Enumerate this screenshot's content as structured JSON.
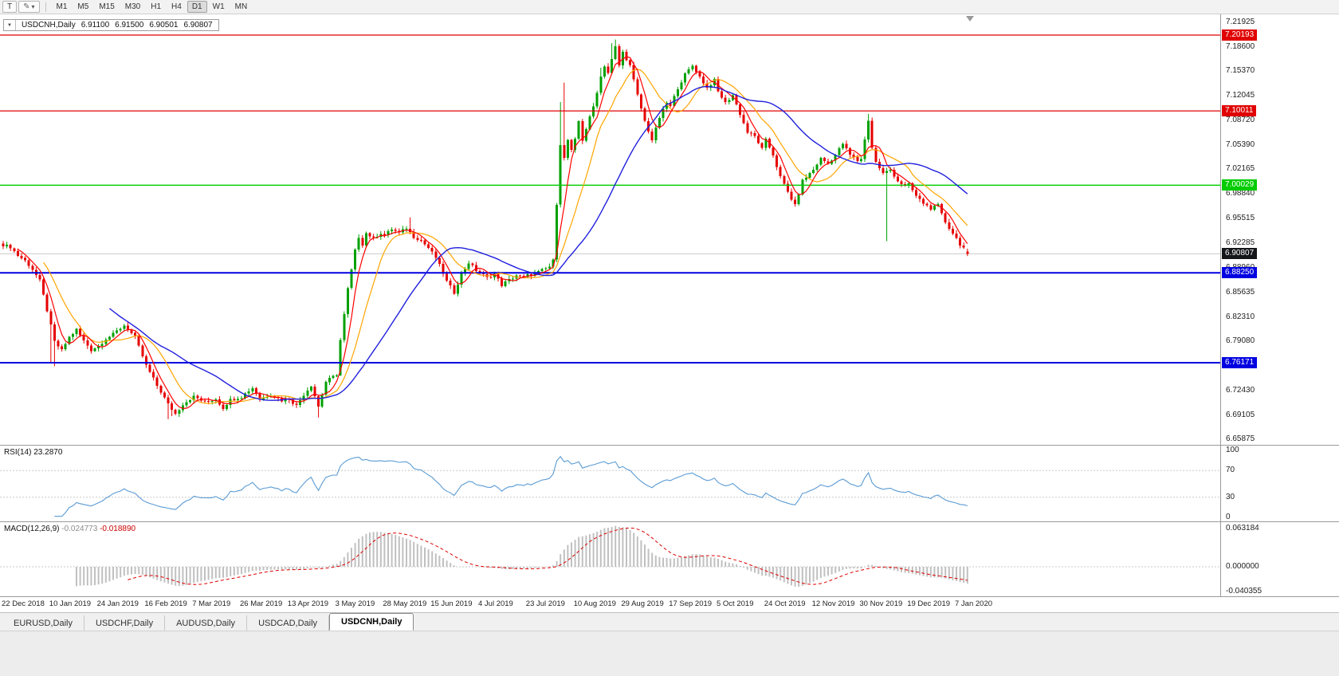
{
  "colors": {
    "bull": "#00a000",
    "bear": "#e60000",
    "ma_fast": "#ff0000",
    "ma_mid": "#ffa500",
    "ma_slow": "#2020dd",
    "rsi_line": "#5a9bd4",
    "macd_hist": "#c0c0c0",
    "macd_signal": "#dd0000"
  },
  "icons": {
    "quote_caret": "▼",
    "drawing_tool": "✎",
    "caret_down": "▾"
  },
  "toolbar": {
    "t_button": "T",
    "timeframes": [
      "M1",
      "M5",
      "M15",
      "M30",
      "H1",
      "H4",
      "D1",
      "W1",
      "MN"
    ],
    "active_timeframe": "D1"
  },
  "symbol_info": {
    "symbol": "USDCNH,Daily",
    "open": "6.91100",
    "high": "6.91500",
    "low": "6.90501",
    "close": "6.90807"
  },
  "main_chart": {
    "scale_top": 7.2298,
    "scale_bottom": 6.6514,
    "y_ticks": [
      "7.21925",
      "7.18600",
      "7.15370",
      "7.12045",
      "7.08720",
      "7.05390",
      "7.02165",
      "6.98840",
      "6.95515",
      "6.92285",
      "6.88960",
      "6.85635",
      "6.82310",
      "6.79080",
      "6.75755",
      "6.72430",
      "6.69105",
      "6.65875"
    ],
    "hlines": [
      {
        "price": 7.20193,
        "label": "7.20193",
        "color": "#e00000",
        "width": 1.3
      },
      {
        "price": 7.10011,
        "label": "7.10011",
        "color": "#e00000",
        "width": 1.3
      },
      {
        "price": 7.00029,
        "label": "7.00029",
        "color": "#00cc00",
        "width": 1.3
      },
      {
        "price": 6.8825,
        "label": "6.88250",
        "color": "#0000e0",
        "width": 2
      },
      {
        "price": 6.76171,
        "label": "6.76171",
        "color": "#0000e0",
        "width": 2
      }
    ],
    "current_price": {
      "price": 6.90807,
      "label": "6.90807"
    }
  },
  "rsi": {
    "label": "RSI(14)",
    "value": "23.2870",
    "levels": [
      70,
      30
    ],
    "ticks": [
      {
        "v": 100,
        "label": "100"
      },
      {
        "v": 70,
        "label": "70"
      },
      {
        "v": 30,
        "label": "30"
      },
      {
        "v": 0,
        "label": "0"
      }
    ]
  },
  "macd": {
    "label": "MACD(12,26,9)",
    "value_main": "-0.024773",
    "value_signal": "-0.018890",
    "ticks": [
      {
        "v": 0.063184,
        "label": "0.063184"
      },
      {
        "v": 0,
        "label": "0.000000"
      },
      {
        "v": -0.040355,
        "label": "-0.040355"
      }
    ]
  },
  "tabs": [
    "EURUSD,Daily",
    "USDCHF,Daily",
    "AUDUSD,Daily",
    "USDCAD,Daily",
    "USDCNH,Daily"
  ],
  "active_tab": "USDCNH,Daily",
  "chart_data": {
    "type": "candlestick",
    "symbol": "USDCNH",
    "timeframe": "Daily",
    "bars": 264,
    "last_bar": {
      "open": 6.911,
      "high": 6.915,
      "low": 6.90501,
      "close": 6.90807
    },
    "anchors": [
      [
        0,
        6.92
      ],
      [
        2,
        6.917
      ],
      [
        4,
        6.906
      ],
      [
        6,
        6.899
      ],
      [
        8,
        6.887
      ],
      [
        10,
        6.872
      ],
      [
        12,
        6.832
      ],
      [
        14,
        6.79
      ],
      [
        16,
        6.778
      ],
      [
        18,
        6.796
      ],
      [
        20,
        6.806
      ],
      [
        22,
        6.791
      ],
      [
        24,
        6.779
      ],
      [
        26,
        6.784
      ],
      [
        28,
        6.794
      ],
      [
        30,
        6.8
      ],
      [
        33,
        6.812
      ],
      [
        36,
        6.796
      ],
      [
        39,
        6.758
      ],
      [
        42,
        6.731
      ],
      [
        45,
        6.706
      ],
      [
        47,
        6.693
      ],
      [
        49,
        6.706
      ],
      [
        52,
        6.716
      ],
      [
        55,
        6.709
      ],
      [
        58,
        6.713
      ],
      [
        60,
        6.701
      ],
      [
        62,
        6.712
      ],
      [
        65,
        6.716
      ],
      [
        68,
        6.728
      ],
      [
        70,
        6.713
      ],
      [
        73,
        6.719
      ],
      [
        76,
        6.711
      ],
      [
        78,
        6.713
      ],
      [
        80,
        6.704
      ],
      [
        82,
        6.719
      ],
      [
        84,
        6.731
      ],
      [
        86,
        6.703
      ],
      [
        88,
        6.736
      ],
      [
        90,
        6.743
      ],
      [
        91,
        6.746
      ],
      [
        92,
        6.792
      ],
      [
        93,
        6.826
      ],
      [
        94,
        6.861
      ],
      [
        95,
        6.886
      ],
      [
        96,
        6.912
      ],
      [
        97,
        6.931
      ],
      [
        98,
        6.921
      ],
      [
        99,
        6.936
      ],
      [
        101,
        6.929
      ],
      [
        103,
        6.936
      ],
      [
        104,
        6.933
      ],
      [
        106,
        6.941
      ],
      [
        108,
        6.936
      ],
      [
        110,
        6.943
      ],
      [
        112,
        6.931
      ],
      [
        114,
        6.926
      ],
      [
        116,
        6.916
      ],
      [
        118,
        6.903
      ],
      [
        120,
        6.882
      ],
      [
        121,
        6.871
      ],
      [
        123,
        6.856
      ],
      [
        125,
        6.881
      ],
      [
        127,
        6.896
      ],
      [
        129,
        6.886
      ],
      [
        130,
        6.883
      ],
      [
        132,
        6.876
      ],
      [
        134,
        6.881
      ],
      [
        136,
        6.866
      ],
      [
        138,
        6.873
      ],
      [
        140,
        6.879
      ],
      [
        142,
        6.876
      ],
      [
        143,
        6.879
      ],
      [
        145,
        6.881
      ],
      [
        147,
        6.886
      ],
      [
        149,
        6.891
      ],
      [
        150,
        6.899
      ],
      [
        151,
        6.976
      ],
      [
        152,
        7.056
      ],
      [
        153,
        7.036
      ],
      [
        154,
        7.061
      ],
      [
        155,
        7.046
      ],
      [
        156,
        7.061
      ],
      [
        157,
        7.086
      ],
      [
        158,
        7.061
      ],
      [
        159,
        7.076
      ],
      [
        160,
        7.091
      ],
      [
        161,
        7.106
      ],
      [
        162,
        7.126
      ],
      [
        163,
        7.146
      ],
      [
        164,
        7.161
      ],
      [
        165,
        7.151
      ],
      [
        166,
        7.169
      ],
      [
        167,
        7.186
      ],
      [
        168,
        7.161
      ],
      [
        169,
        7.179
      ],
      [
        171,
        7.161
      ],
      [
        173,
        7.121
      ],
      [
        175,
        7.086
      ],
      [
        177,
        7.061
      ],
      [
        179,
        7.091
      ],
      [
        181,
        7.111
      ],
      [
        182,
        7.106
      ],
      [
        184,
        7.131
      ],
      [
        186,
        7.149
      ],
      [
        188,
        7.161
      ],
      [
        190,
        7.146
      ],
      [
        192,
        7.131
      ],
      [
        194,
        7.141
      ],
      [
        195,
        7.126
      ],
      [
        197,
        7.111
      ],
      [
        199,
        7.121
      ],
      [
        201,
        7.096
      ],
      [
        203,
        7.071
      ],
      [
        205,
        7.066
      ],
      [
        207,
        7.049
      ],
      [
        208,
        7.061
      ],
      [
        210,
        7.041
      ],
      [
        212,
        7.011
      ],
      [
        214,
        6.991
      ],
      [
        216,
        6.973
      ],
      [
        218,
        7.006
      ],
      [
        220,
        7.016
      ],
      [
        221,
        7.021
      ],
      [
        223,
        7.036
      ],
      [
        225,
        7.029
      ],
      [
        227,
        7.041
      ],
      [
        229,
        7.056
      ],
      [
        231,
        7.041
      ],
      [
        233,
        7.033
      ],
      [
        234,
        7.036
      ],
      [
        235,
        7.061
      ],
      [
        236,
        7.088
      ],
      [
        237,
        7.051
      ],
      [
        238,
        7.031
      ],
      [
        240,
        7.016
      ],
      [
        242,
        7.021
      ],
      [
        244,
        7.006
      ],
      [
        246,
        6.999
      ],
      [
        247,
        7.001
      ],
      [
        249,
        6.986
      ],
      [
        251,
        6.976
      ],
      [
        253,
        6.969
      ],
      [
        255,
        6.973
      ],
      [
        256,
        6.961
      ],
      [
        257,
        6.951
      ],
      [
        258,
        6.943
      ],
      [
        259,
        6.936
      ],
      [
        260,
        6.929
      ],
      [
        261,
        6.921
      ],
      [
        262,
        6.916
      ],
      [
        263,
        6.908
      ]
    ],
    "wick_overrides": [
      {
        "i": 13,
        "l": 6.762
      },
      {
        "i": 14,
        "l": 6.757
      },
      {
        "i": 45,
        "l": 6.686
      },
      {
        "i": 46,
        "l": 6.69
      },
      {
        "i": 86,
        "l": 6.688
      },
      {
        "i": 92,
        "l": 6.744
      },
      {
        "i": 111,
        "h": 6.957
      },
      {
        "i": 152,
        "h": 7.112
      },
      {
        "i": 153,
        "h": 7.138
      },
      {
        "i": 163,
        "h": 7.158
      },
      {
        "i": 166,
        "h": 7.191
      },
      {
        "i": 167,
        "h": 7.196
      },
      {
        "i": 236,
        "h": 7.096
      },
      {
        "i": 241,
        "l": 6.925
      }
    ],
    "x_labels": [
      {
        "i": 0,
        "t": "22 Dec 2018"
      },
      {
        "i": 13,
        "t": "10 Jan 2019"
      },
      {
        "i": 26,
        "t": "24 Jan 2019"
      },
      {
        "i": 39,
        "t": "16 Feb 2019"
      },
      {
        "i": 52,
        "t": "7 Mar 2019"
      },
      {
        "i": 65,
        "t": "26 Mar 2019"
      },
      {
        "i": 78,
        "t": "13 Apr 2019"
      },
      {
        "i": 91,
        "t": "3 May 2019"
      },
      {
        "i": 104,
        "t": "28 May 2019"
      },
      {
        "i": 117,
        "t": "15 Jun 2019"
      },
      {
        "i": 130,
        "t": "4 Jul 2019"
      },
      {
        "i": 143,
        "t": "23 Jul 2019"
      },
      {
        "i": 156,
        "t": "10 Aug 2019"
      },
      {
        "i": 169,
        "t": "29 Aug 2019"
      },
      {
        "i": 182,
        "t": "17 Sep 2019"
      },
      {
        "i": 195,
        "t": "5 Oct 2019"
      },
      {
        "i": 208,
        "t": "24 Oct 2019"
      },
      {
        "i": 221,
        "t": "12 Nov 2019"
      },
      {
        "i": 234,
        "t": "30 Nov 2019"
      },
      {
        "i": 247,
        "t": "19 Dec 2019"
      },
      {
        "i": 260,
        "t": "7 Jan 2020"
      }
    ],
    "moving_averages": [
      {
        "period": 5,
        "color_key": "ma_fast"
      },
      {
        "period": 12,
        "color_key": "ma_mid"
      },
      {
        "period": 30,
        "color_key": "ma_slow"
      }
    ]
  }
}
